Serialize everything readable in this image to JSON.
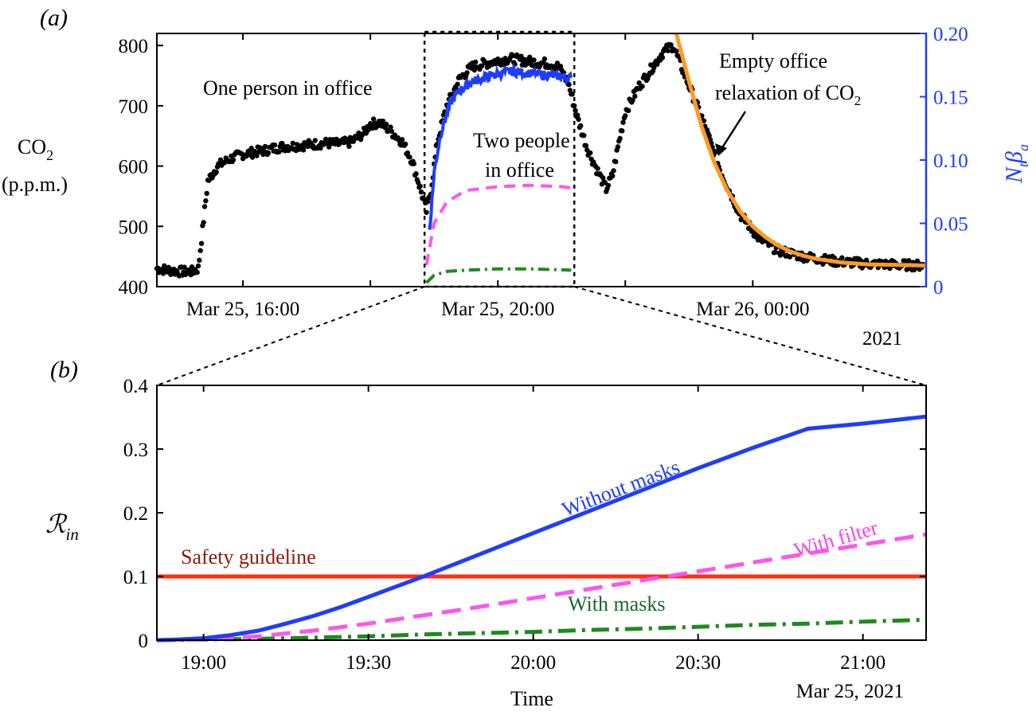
{
  "chart_data": [
    {
      "panel": "(a)",
      "type": "scatter",
      "ylabel": [
        "CO2",
        "(p.p.m.)"
      ],
      "ylabel_right": "Ntβa",
      "ylim": [
        400,
        820
      ],
      "ylim_right": [
        0,
        0.2
      ],
      "yticks": [
        "400",
        "500",
        "600",
        "700",
        "800"
      ],
      "yticks_right": [
        "0",
        "0.05",
        "0.10",
        "0.15",
        "0.20"
      ],
      "xlim_hours": [
        14.65,
        26.72
      ],
      "xticks": [
        {
          "at": 16,
          "label": "Mar 25, 16:00"
        },
        {
          "at": 18,
          "label": ""
        },
        {
          "at": 20,
          "label": "Mar 25, 20:00"
        },
        {
          "at": 22,
          "label": ""
        },
        {
          "at": 24,
          "label": "Mar 26, 00:00"
        }
      ],
      "year_label": "2021",
      "zoom_window_hours": [
        18.85,
        21.2
      ],
      "annotations": {
        "one_person": "One person in office",
        "two_people_1": "Two people",
        "two_people_2": "in office",
        "empty_1": "Empty office",
        "empty_2": "relaxation of CO2"
      },
      "series": [
        {
          "name": "CO2 measurements",
          "color": "#000000",
          "points": [
            [
              14.65,
              430
            ],
            [
              14.8,
              428
            ],
            [
              15.0,
              425
            ],
            [
              15.2,
              425
            ],
            [
              15.3,
              430
            ],
            [
              15.45,
              575
            ],
            [
              15.6,
              600
            ],
            [
              15.8,
              612
            ],
            [
              16.0,
              620
            ],
            [
              16.3,
              625
            ],
            [
              16.6,
              632
            ],
            [
              17.0,
              635
            ],
            [
              17.3,
              638
            ],
            [
              17.5,
              637
            ],
            [
              17.7,
              640
            ],
            [
              17.9,
              655
            ],
            [
              18.0,
              670
            ],
            [
              18.15,
              672
            ],
            [
              18.3,
              660
            ],
            [
              18.5,
              640
            ],
            [
              18.65,
              610
            ],
            [
              18.75,
              575
            ],
            [
              18.83,
              545
            ],
            [
              18.88,
              525
            ],
            [
              18.95,
              560
            ],
            [
              19.05,
              640
            ],
            [
              19.2,
              700
            ],
            [
              19.4,
              745
            ],
            [
              19.6,
              765
            ],
            [
              19.8,
              770
            ],
            [
              20.0,
              775
            ],
            [
              20.2,
              778
            ],
            [
              20.4,
              775
            ],
            [
              20.6,
              772
            ],
            [
              20.8,
              770
            ],
            [
              20.95,
              765
            ],
            [
              21.1,
              740
            ],
            [
              21.25,
              680
            ],
            [
              21.4,
              630
            ],
            [
              21.55,
              595
            ],
            [
              21.7,
              562
            ],
            [
              21.8,
              585
            ],
            [
              21.9,
              640
            ],
            [
              22.0,
              690
            ],
            [
              22.2,
              730
            ],
            [
              22.4,
              760
            ],
            [
              22.6,
              790
            ],
            [
              22.75,
              800
            ],
            [
              22.9,
              760
            ],
            [
              23.2,
              680
            ],
            [
              23.5,
              590
            ],
            [
              23.8,
              520
            ],
            [
              24.1,
              480
            ],
            [
              24.4,
              460
            ],
            [
              24.8,
              450
            ],
            [
              25.3,
              442
            ],
            [
              25.8,
              438
            ],
            [
              26.3,
              436
            ],
            [
              26.7,
              435
            ]
          ]
        },
        {
          "name": "Ntβa",
          "color": "#1f3cff",
          "axis": "right",
          "points": [
            [
              18.93,
              0.045
            ],
            [
              19.0,
              0.09
            ],
            [
              19.1,
              0.12
            ],
            [
              19.25,
              0.145
            ],
            [
              19.4,
              0.155
            ],
            [
              19.6,
              0.162
            ],
            [
              19.8,
              0.165
            ],
            [
              20.0,
              0.168
            ],
            [
              20.2,
              0.17
            ],
            [
              20.4,
              0.169
            ],
            [
              20.6,
              0.168
            ],
            [
              20.8,
              0.167
            ],
            [
              21.0,
              0.166
            ],
            [
              21.15,
              0.165
            ]
          ]
        },
        {
          "name": "dashed magenta",
          "color": "#ff55ee",
          "axis": "right",
          "points": [
            [
              18.88,
              0.017
            ],
            [
              19.0,
              0.05
            ],
            [
              19.2,
              0.067
            ],
            [
              19.5,
              0.076
            ],
            [
              20.0,
              0.079
            ],
            [
              20.5,
              0.08
            ],
            [
              21.0,
              0.079
            ],
            [
              21.15,
              0.078
            ]
          ]
        },
        {
          "name": "dash-dot green",
          "color": "#1e8a1e",
          "axis": "right",
          "points": [
            [
              18.88,
              0.003
            ],
            [
              19.0,
              0.009
            ],
            [
              19.2,
              0.012
            ],
            [
              19.5,
              0.013
            ],
            [
              20.0,
              0.014
            ],
            [
              20.5,
              0.014
            ],
            [
              21.15,
              0.013
            ]
          ]
        },
        {
          "name": "empty office fit",
          "color": "#ff9a1f",
          "points": [
            [
              22.8,
              820
            ],
            [
              23.0,
              740
            ],
            [
              23.2,
              665
            ],
            [
              23.4,
              605
            ],
            [
              23.6,
              560
            ],
            [
              23.8,
              525
            ],
            [
              24.0,
              500
            ],
            [
              24.2,
              482
            ],
            [
              24.4,
              468
            ],
            [
              24.6,
              458
            ],
            [
              24.8,
              451
            ],
            [
              25.0,
              446
            ],
            [
              25.4,
              440
            ],
            [
              25.8,
              437
            ],
            [
              26.3,
              436
            ],
            [
              26.72,
              435
            ]
          ]
        }
      ]
    },
    {
      "panel": "(b)",
      "type": "line",
      "ylabel": "Rin",
      "xlabel": "Time",
      "ylim": [
        0,
        0.4
      ],
      "yticks": [
        "0",
        "0.1",
        "0.2",
        "0.3",
        "0.4"
      ],
      "xlim_minutes": [
        -17,
        263
      ],
      "xticks": [
        {
          "at": 0,
          "label": "19:00"
        },
        {
          "at": 60,
          "label": "19:30"
        },
        {
          "at": 120,
          "label": "20:00"
        },
        {
          "at": 180,
          "label": "20:30"
        },
        {
          "at": 240,
          "label": "21:00"
        }
      ],
      "date_label": "Mar 25, 2021",
      "series": [
        {
          "name": "Without masks",
          "color": "#1f3cff",
          "points": [
            [
              -17,
              0
            ],
            [
              -10,
              0.001
            ],
            [
              0,
              0.003
            ],
            [
              10,
              0.008
            ],
            [
              20,
              0.015
            ],
            [
              30,
              0.026
            ],
            [
              40,
              0.038
            ],
            [
              50,
              0.052
            ],
            [
              60,
              0.068
            ],
            [
              70,
              0.084
            ],
            [
              80,
              0.1
            ],
            [
              90,
              0.117
            ],
            [
              100,
              0.134
            ],
            [
              110,
              0.151
            ],
            [
              120,
              0.168
            ],
            [
              140,
              0.202
            ],
            [
              160,
              0.236
            ],
            [
              180,
              0.27
            ],
            [
              200,
              0.302
            ],
            [
              220,
              0.332
            ],
            [
              240,
              0.34
            ],
            [
              263,
              0.351
            ]
          ]
        },
        {
          "name": "With filter",
          "color": "#ff55ee",
          "points": [
            [
              -17,
              0
            ],
            [
              0,
              0.001
            ],
            [
              20,
              0.006
            ],
            [
              40,
              0.015
            ],
            [
              60,
              0.026
            ],
            [
              80,
              0.039
            ],
            [
              100,
              0.052
            ],
            [
              120,
              0.066
            ],
            [
              140,
              0.08
            ],
            [
              160,
              0.094
            ],
            [
              180,
              0.108
            ],
            [
              200,
              0.122
            ],
            [
              220,
              0.136
            ],
            [
              240,
              0.15
            ],
            [
              263,
              0.166
            ]
          ]
        },
        {
          "name": "With masks",
          "color": "#1e8a1e",
          "points": [
            [
              -17,
              0
            ],
            [
              0,
              0.001
            ],
            [
              20,
              0.002
            ],
            [
              40,
              0.004
            ],
            [
              60,
              0.006
            ],
            [
              80,
              0.009
            ],
            [
              100,
              0.011
            ],
            [
              120,
              0.013
            ],
            [
              140,
              0.016
            ],
            [
              160,
              0.018
            ],
            [
              180,
              0.021
            ],
            [
              200,
              0.024
            ],
            [
              220,
              0.026
            ],
            [
              240,
              0.029
            ],
            [
              263,
              0.032
            ]
          ]
        },
        {
          "name": "Safety guideline",
          "color": "#ff3010",
          "points": [
            [
              -17,
              0.1
            ],
            [
              263,
              0.1
            ]
          ]
        }
      ]
    }
  ]
}
